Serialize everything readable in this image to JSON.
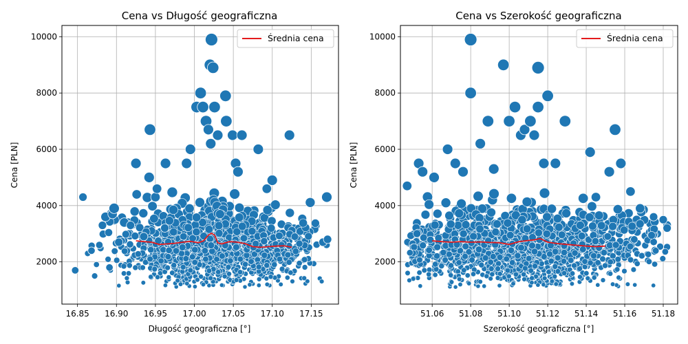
{
  "chart_data": [
    {
      "type": "scatter",
      "title": "Cena vs Długość geograficzna",
      "xlabel": "Długość geograficzna [°]",
      "ylabel": "Cena [PLN]",
      "xlim": [
        16.83,
        17.185
      ],
      "ylim": [
        500,
        10400
      ],
      "xticks": [
        "16.85",
        "16.90",
        "16.95",
        "17.00",
        "17.05",
        "17.10",
        "17.15"
      ],
      "yticks": [
        "2000",
        "4000",
        "6000",
        "8000",
        "10000"
      ],
      "grid": true,
      "legend": {
        "position": "top-right",
        "entries": [
          {
            "label": "Średnia cena",
            "color": "#e31a1c"
          }
        ]
      },
      "marker_color": "#1f77b4",
      "series": [
        {
          "kind": "points",
          "note": "highlighted (sampled) points; dense cloud between ~1300 and ~4500 PLN",
          "x": [
            16.847,
            16.857,
            16.863,
            16.868,
            16.872,
            16.878,
            16.882,
            16.886,
            16.891,
            16.895,
            16.897,
            16.903,
            16.91,
            16.918,
            16.925,
            16.926,
            16.935,
            16.942,
            16.943,
            16.95,
            16.952,
            16.962,
            16.963,
            16.99,
            16.995,
            17.003,
            17.008,
            17.011,
            17.015,
            17.018,
            17.02,
            17.021,
            17.022,
            17.024,
            17.026,
            17.03,
            17.04,
            17.041,
            17.049,
            17.053,
            17.056,
            17.061,
            17.082,
            17.093,
            17.1,
            17.122,
            17.165,
            17.171,
            17.17
          ],
          "y": [
            1700,
            4300,
            2300,
            2400,
            1500,
            2600,
            3300,
            3600,
            1800,
            3700,
            3900,
            2700,
            3400,
            3300,
            5500,
            4400,
            2900,
            5000,
            6700,
            4300,
            4600,
            3200,
            5500,
            5500,
            6000,
            7500,
            8000,
            7500,
            7000,
            6700,
            9000,
            6200,
            9900,
            8900,
            7500,
            6500,
            7900,
            7000,
            6500,
            5500,
            5200,
            6500,
            6000,
            4600,
            4900,
            6500,
            2700,
            2800,
            4300
          ],
          "size": [
            7,
            8,
            6,
            7,
            6,
            7,
            8,
            9,
            7,
            9,
            10,
            8,
            9,
            8,
            10,
            9,
            8,
            10,
            11,
            9,
            9,
            8,
            10,
            10,
            10,
            11,
            11,
            11,
            11,
            10,
            11,
            10,
            12,
            11,
            11,
            10,
            11,
            11,
            10,
            10,
            10,
            10,
            10,
            9,
            10,
            10,
            8,
            8,
            10
          ]
        },
        {
          "kind": "mean-line",
          "name": "Średnia cena",
          "color": "#e31a1c",
          "x": [
            16.925,
            16.935,
            16.945,
            16.955,
            16.965,
            16.975,
            16.985,
            16.995,
            17.005,
            17.012,
            17.018,
            17.022,
            17.026,
            17.03,
            17.035,
            17.045,
            17.055,
            17.065,
            17.075,
            17.085,
            17.095,
            17.105,
            17.115,
            17.125
          ],
          "y": [
            2750,
            2720,
            2700,
            2620,
            2640,
            2660,
            2700,
            2730,
            2680,
            2750,
            2950,
            3020,
            2950,
            2680,
            2640,
            2720,
            2700,
            2650,
            2540,
            2520,
            2540,
            2560,
            2570,
            2520
          ]
        }
      ]
    },
    {
      "type": "scatter",
      "title": "Cena vs Szerokość geograficzna",
      "xlabel": "Szerokość geograficzna [°]",
      "ylabel": "Cena [PLN]",
      "xlim": [
        51.0435,
        51.1875
      ],
      "ylim": [
        500,
        10400
      ],
      "xticks": [
        "51.06",
        "51.08",
        "51.10",
        "51.12",
        "51.14",
        "51.16",
        "51.18"
      ],
      "yticks": [
        "2000",
        "4000",
        "6000",
        "8000",
        "10000"
      ],
      "grid": true,
      "legend": {
        "position": "top-right",
        "entries": [
          {
            "label": "Średnia cena",
            "color": "#e31a1c"
          }
        ]
      },
      "marker_color": "#1f77b4",
      "series": [
        {
          "kind": "points",
          "note": "highlighted (sampled) points; dense cloud between ~1300 and ~4500 PLN",
          "x": [
            51.047,
            51.053,
            51.055,
            51.061,
            51.068,
            51.072,
            51.076,
            51.08,
            51.08,
            51.085,
            51.089,
            51.092,
            51.097,
            51.1,
            51.103,
            51.106,
            51.108,
            51.111,
            51.113,
            51.115,
            51.115,
            51.118,
            51.12,
            51.124,
            51.129,
            51.142,
            51.145,
            51.152,
            51.155,
            51.158,
            51.163,
            51.168,
            51.175,
            51.18,
            51.182
          ],
          "y": [
            4700,
            5500,
            5200,
            5000,
            6000,
            5500,
            5200,
            9900,
            8000,
            6200,
            7000,
            5300,
            9000,
            7000,
            7500,
            6500,
            6700,
            7000,
            6500,
            7500,
            8900,
            5500,
            7900,
            5500,
            7000,
            5900,
            4300,
            5200,
            6700,
            5500,
            4500,
            3900,
            3600,
            3500,
            3200
          ],
          "size": [
            9,
            10,
            10,
            10,
            10,
            10,
            10,
            12,
            11,
            10,
            11,
            10,
            11,
            11,
            11,
            10,
            10,
            11,
            10,
            11,
            12,
            10,
            11,
            10,
            11,
            10,
            9,
            10,
            11,
            10,
            9,
            9,
            8,
            8,
            8
          ]
        },
        {
          "kind": "mean-line",
          "name": "Średnia cena",
          "color": "#e31a1c",
          "x": [
            51.06,
            51.065,
            51.07,
            51.075,
            51.08,
            51.085,
            51.09,
            51.095,
            51.1,
            51.105,
            51.11,
            51.113,
            51.116,
            51.12,
            51.125,
            51.13,
            51.135,
            51.14,
            51.145,
            51.15
          ],
          "y": [
            2750,
            2720,
            2700,
            2720,
            2700,
            2710,
            2690,
            2680,
            2620,
            2720,
            2760,
            2780,
            2830,
            2700,
            2650,
            2620,
            2590,
            2560,
            2540,
            2560
          ]
        }
      ]
    }
  ]
}
